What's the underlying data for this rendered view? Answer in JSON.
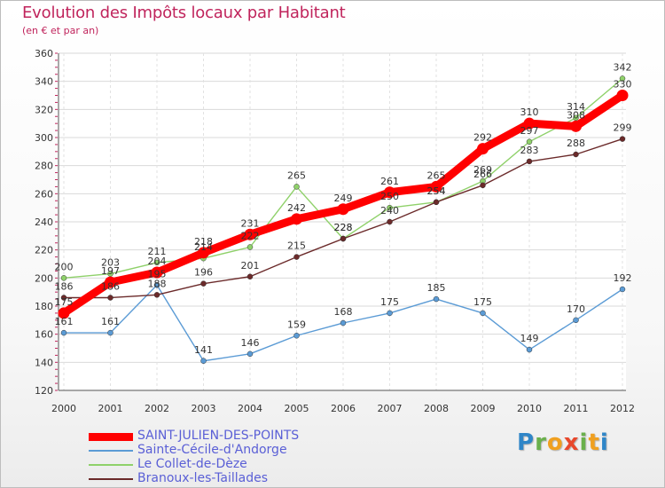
{
  "header": {
    "title": "Evolution des Impôts locaux par Habitant",
    "subtitle": "(en € et par an)"
  },
  "logo_text": "Proxiti",
  "chart_data": {
    "type": "line",
    "title": "Evolution des Impôts locaux par Habitant",
    "subtitle": "(en € et par an)",
    "xlabel": "",
    "ylabel": "",
    "x": [
      "2000",
      "2001",
      "2002",
      "2003",
      "2004",
      "2005",
      "2006",
      "2007",
      "2008",
      "2009",
      "2010",
      "2011",
      "2012"
    ],
    "ylim": [
      120,
      360
    ],
    "yticks": [
      120,
      140,
      160,
      180,
      200,
      220,
      240,
      260,
      280,
      300,
      320,
      340,
      360
    ],
    "grid": true,
    "legend_position": "bottom-left",
    "series": [
      {
        "name": "SAINT-JULIEN-DES-POINTS",
        "color": "#ff0000",
        "emphasis": true,
        "values": [
          175,
          197,
          204,
          218,
          231,
          242,
          249,
          261,
          265,
          292,
          310,
          308,
          330
        ]
      },
      {
        "name": "Sainte-Cécile-d'Andorge",
        "color": "#5b9bd5",
        "values": [
          161,
          161,
          195,
          141,
          146,
          159,
          168,
          175,
          185,
          175,
          149,
          170,
          192
        ]
      },
      {
        "name": "Le Collet-de-Dèze",
        "color": "#8fd16a",
        "values": [
          200,
          203,
          211,
          214,
          222,
          265,
          228,
          250,
          254,
          269,
          297,
          314,
          342
        ]
      },
      {
        "name": "Branoux-les-Taillades",
        "color": "#6b2a2a",
        "values": [
          186,
          186,
          188,
          196,
          201,
          215,
          228,
          240,
          254,
          266,
          283,
          288,
          299
        ]
      }
    ],
    "data_labels": [
      [
        "175",
        "197",
        "204",
        "218",
        "231",
        "242",
        "249",
        "261",
        "265",
        "292",
        "310",
        "308",
        "330"
      ],
      [
        "161",
        "161",
        "195",
        "141",
        "146",
        "159",
        "168",
        "175",
        "185",
        "175",
        "149",
        "170",
        "192"
      ],
      [
        "200",
        "203",
        "211",
        "214",
        "222",
        "265",
        "228",
        "250",
        "254",
        "269",
        "297",
        "314",
        "342"
      ],
      [
        "186",
        "186",
        "188",
        "196",
        "201",
        "215",
        "228",
        "240",
        "254",
        "266",
        "283",
        "288",
        "299"
      ]
    ]
  }
}
